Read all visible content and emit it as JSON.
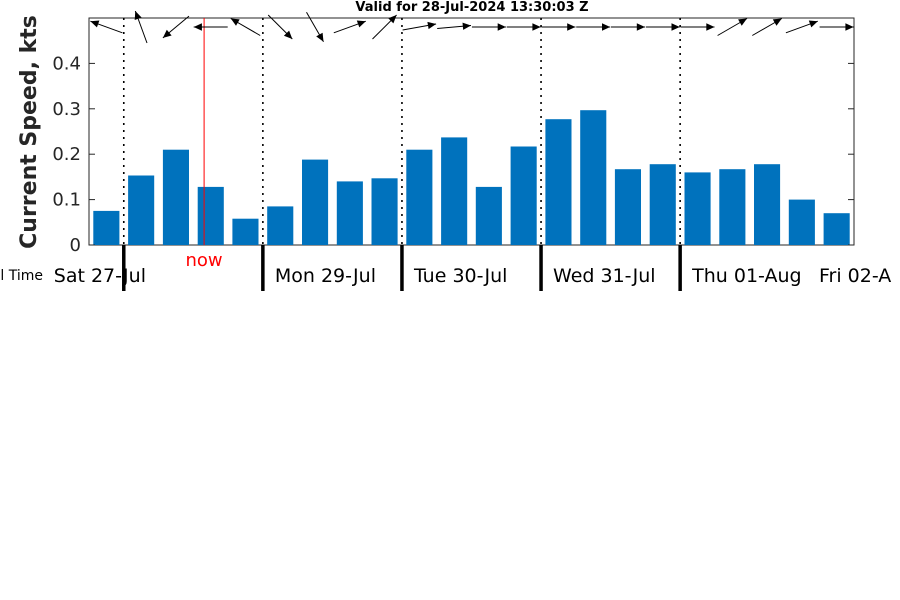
{
  "chart_data": {
    "type": "bar",
    "title": "Valid for 28-Jul-2024 13:30:03 Z",
    "ylabel": "Current Speed, kts",
    "xaxis_label_fragment": "l Time",
    "ylim": [
      0,
      0.5
    ],
    "yticks": [
      "0",
      "0.1",
      "0.2",
      "0.3",
      "0.4"
    ],
    "ytick_values": [
      0,
      0.1,
      0.2,
      0.3,
      0.4
    ],
    "grid": false,
    "bar_color": "#0072bd",
    "values": [
      0.075,
      0.153,
      0.21,
      0.128,
      0.058,
      0.085,
      0.188,
      0.14,
      0.147,
      0.21,
      0.237,
      0.128,
      0.217,
      0.277,
      0.297,
      0.167,
      0.178,
      0.16,
      0.167,
      0.178,
      0.1,
      0.07
    ],
    "direction_arrows_deg": [
      160,
      110,
      220,
      180,
      150,
      315,
      300,
      20,
      45,
      10,
      5,
      0,
      0,
      0,
      0,
      0,
      0,
      0,
      30,
      30,
      20,
      0
    ],
    "day_labels": [
      "Sat 27-Jul",
      "Mon 29-Jul",
      "Tue 30-Jul",
      "Wed 31-Jul",
      "Thu 01-Aug",
      "Fri 02-A"
    ],
    "now_marker": {
      "label": "now",
      "color": "#ff0000"
    }
  }
}
